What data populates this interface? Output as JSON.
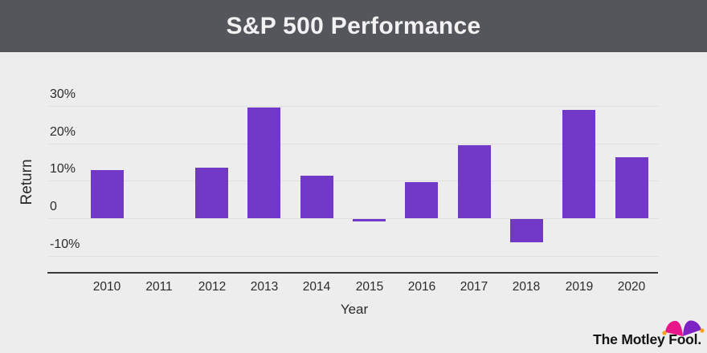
{
  "header": {
    "title": "S&P 500 Performance"
  },
  "chart_data": {
    "type": "bar",
    "title": "S&P 500 Performance",
    "xlabel": "Year",
    "ylabel": "Return",
    "categories": [
      "2010",
      "2011",
      "2012",
      "2013",
      "2014",
      "2015",
      "2016",
      "2017",
      "2018",
      "2019",
      "2020"
    ],
    "values": [
      12.78,
      0.0,
      13.41,
      29.6,
      11.39,
      -0.73,
      9.54,
      19.42,
      -6.24,
      28.88,
      16.26
    ],
    "yticks": [
      {
        "value": 30,
        "label": "30%"
      },
      {
        "value": 20,
        "label": "20%"
      },
      {
        "value": 10,
        "label": "10%"
      },
      {
        "value": 0,
        "label": "0"
      },
      {
        "value": -10,
        "label": "-10%"
      }
    ],
    "ylim": [
      -14,
      33
    ],
    "grid": true,
    "legend_position": "none",
    "bar_color": "#7238C8"
  },
  "branding": {
    "logo_text": "The Motley Fool.",
    "hat_left_color": "#E9168A",
    "hat_right_color": "#7D22C3",
    "hat_dot_color": "#F9A01B"
  },
  "colors": {
    "header_bg": "#54565B",
    "page_bg": "#EDEDEE",
    "grid_line": "#DFDFE2",
    "axis_line": "#3B3B3D",
    "tick_text": "#2B2B2D"
  }
}
